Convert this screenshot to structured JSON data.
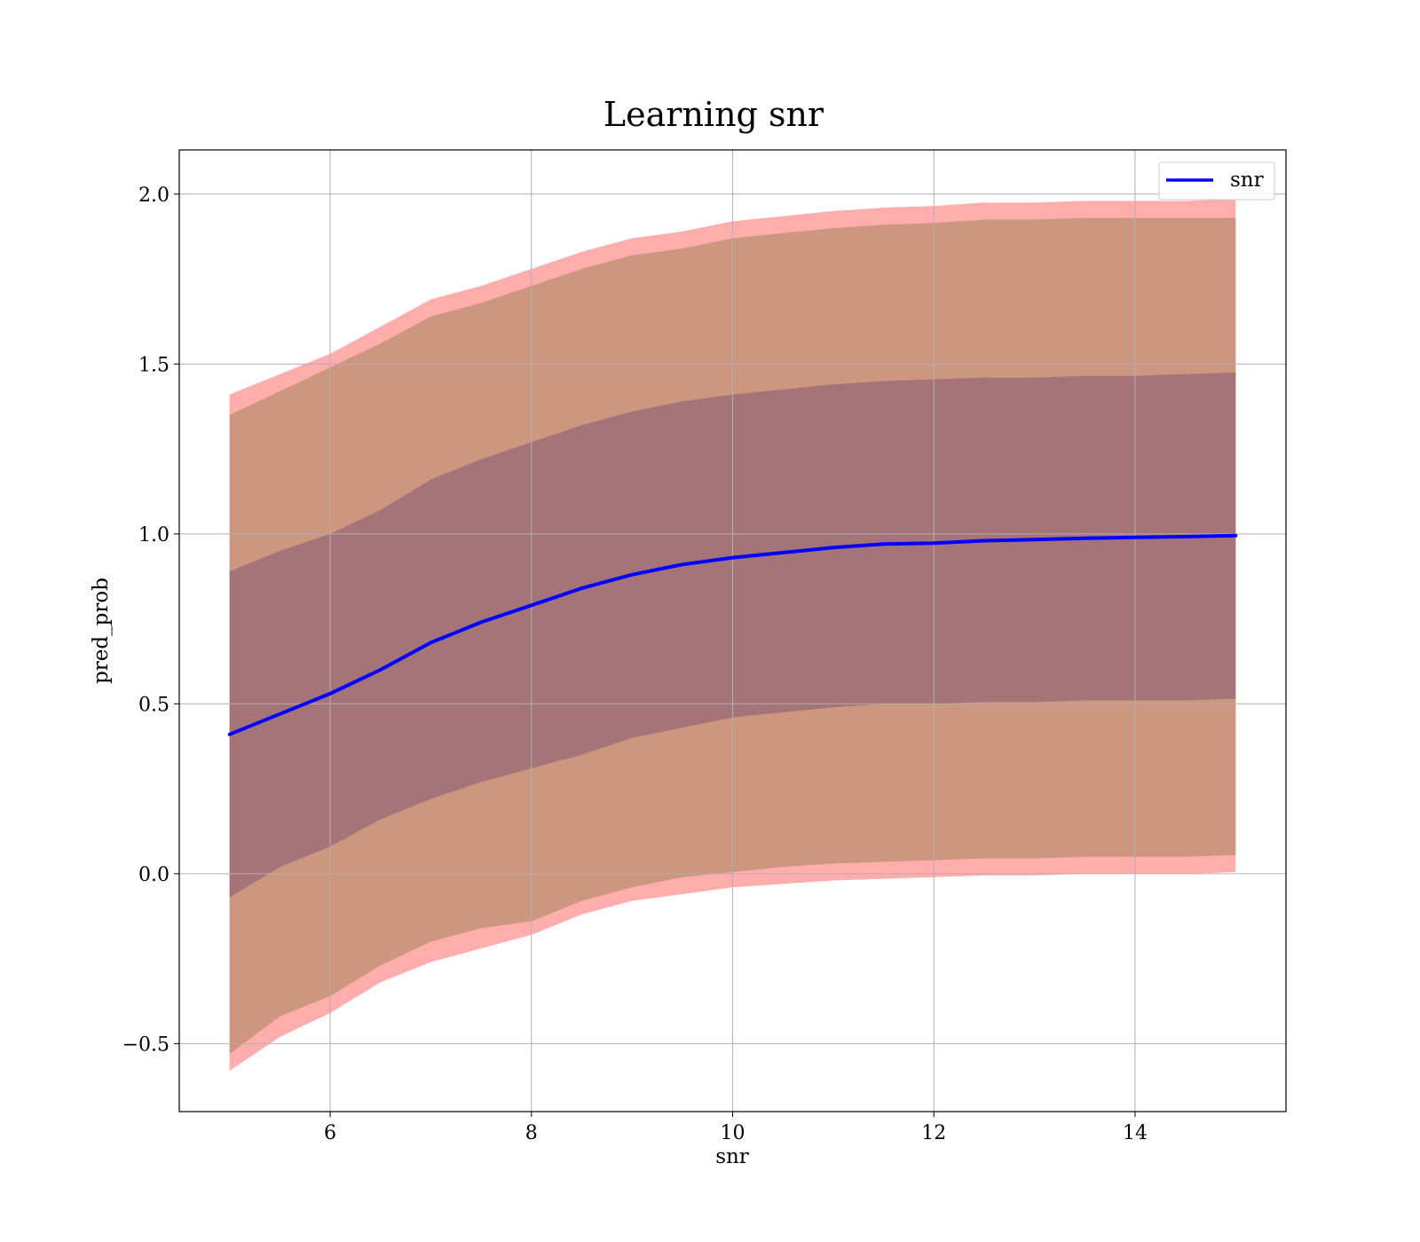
{
  "chart_data": {
    "type": "area",
    "title": "Learning snr",
    "xlabel": "snr",
    "ylabel": "pred_prob",
    "xlim": [
      4.5,
      15.5
    ],
    "ylim": [
      -0.7,
      2.13
    ],
    "xticks": [
      6,
      8,
      10,
      12,
      14
    ],
    "xtick_labels": [
      "6",
      "8",
      "10",
      "12",
      "14"
    ],
    "yticks": [
      -0.5,
      0.0,
      0.5,
      1.0,
      1.5,
      2.0
    ],
    "ytick_labels": [
      "−0.5",
      "0.0",
      "0.5",
      "1.0",
      "1.5",
      "2.0"
    ],
    "grid": true,
    "legend": {
      "position": "top-right",
      "entries": [
        "snr"
      ]
    },
    "colors": {
      "line": "#0000ff",
      "outer_band": "#ff8a8a",
      "middle_band": "#c8947a",
      "inner_band": "#a07079"
    },
    "x": [
      5,
      5.5,
      6,
      6.5,
      7,
      7.5,
      8,
      8.5,
      9,
      9.5,
      10,
      10.5,
      11,
      11.5,
      12,
      12.5,
      13,
      13.5,
      14,
      14.5,
      15
    ],
    "series": [
      {
        "name": "snr",
        "values": [
          0.41,
          0.47,
          0.53,
          0.6,
          0.68,
          0.74,
          0.79,
          0.84,
          0.88,
          0.91,
          0.93,
          0.945,
          0.96,
          0.97,
          0.973,
          0.98,
          0.983,
          0.987,
          0.99,
          0.992,
          0.995
        ]
      }
    ],
    "bands": [
      {
        "lower": [
          -0.58,
          -0.48,
          -0.41,
          -0.32,
          -0.26,
          -0.22,
          -0.18,
          -0.12,
          -0.08,
          -0.06,
          -0.04,
          -0.03,
          -0.02,
          -0.015,
          -0.01,
          -0.005,
          -0.005,
          0.0,
          0.0,
          0.0,
          0.005
        ],
        "upper": [
          1.41,
          1.47,
          1.53,
          1.61,
          1.69,
          1.73,
          1.78,
          1.83,
          1.87,
          1.89,
          1.92,
          1.935,
          1.95,
          1.96,
          1.965,
          1.975,
          1.975,
          1.98,
          1.98,
          1.98,
          1.985
        ]
      },
      {
        "lower": [
          -0.53,
          -0.42,
          -0.36,
          -0.27,
          -0.2,
          -0.16,
          -0.14,
          -0.08,
          -0.04,
          -0.01,
          0.005,
          0.02,
          0.03,
          0.035,
          0.04,
          0.045,
          0.045,
          0.05,
          0.05,
          0.05,
          0.055
        ],
        "upper": [
          1.35,
          1.42,
          1.49,
          1.56,
          1.64,
          1.68,
          1.73,
          1.78,
          1.82,
          1.84,
          1.87,
          1.885,
          1.9,
          1.91,
          1.915,
          1.925,
          1.925,
          1.93,
          1.93,
          1.93,
          1.93
        ]
      },
      {
        "lower": [
          -0.07,
          0.02,
          0.08,
          0.16,
          0.22,
          0.27,
          0.31,
          0.35,
          0.4,
          0.43,
          0.46,
          0.475,
          0.49,
          0.5,
          0.5,
          0.505,
          0.505,
          0.51,
          0.51,
          0.51,
          0.515
        ],
        "upper": [
          0.89,
          0.95,
          1.0,
          1.07,
          1.16,
          1.22,
          1.27,
          1.32,
          1.36,
          1.39,
          1.41,
          1.425,
          1.44,
          1.45,
          1.455,
          1.46,
          1.46,
          1.465,
          1.465,
          1.47,
          1.475
        ]
      }
    ]
  }
}
